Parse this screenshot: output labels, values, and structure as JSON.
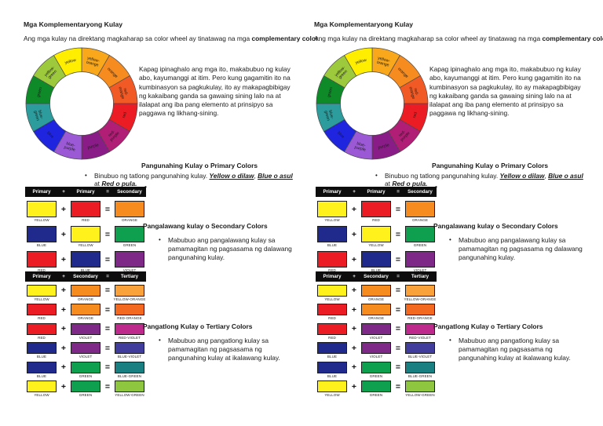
{
  "page": {
    "title": "Mga Komplementaryong Kulay",
    "intro": {
      "prefix": "Ang mga kulay na direktang magkaharap sa color wheel ay tinatawag na mga ",
      "bold": "complementary color",
      "suffix": "."
    },
    "wheel": {
      "segments": [
        {
          "label": "yellow-orange",
          "color": "#F9A81B"
        },
        {
          "label": "orange",
          "color": "#F68B1F"
        },
        {
          "label": "red-orange",
          "color": "#F15A25"
        },
        {
          "label": "red",
          "color": "#EC1C24"
        },
        {
          "label": "red-purple",
          "color": "#B01E76"
        },
        {
          "label": "purple",
          "color": "#8A1C87"
        },
        {
          "label": "blue-purple",
          "color": "#9C59D6"
        },
        {
          "label": "blue",
          "color": "#1F24DF"
        },
        {
          "label": "blue-green",
          "color": "#2D9C9C"
        },
        {
          "label": "green",
          "color": "#0F8A28"
        },
        {
          "label": "yellow-green",
          "color": "#9DC93D"
        },
        {
          "label": "yellow",
          "color": "#FFEE00"
        }
      ]
    },
    "mix_note": "Kapag ipinaghalo ang mga ito, makabubuo ng kulay abo, kayumanggi at itim. Pero kung gagamitin ito na kumbinasyon sa  pagkukulay, ito ay makapagbibigay ng kakaibang ganda sa gawaing sining lalo na at ilalapat ang iba pang elemento at prinsipyo sa paggawa ng likhang-sining.",
    "primary": {
      "heading": "Pangunahing Kulay o Primary Colors",
      "bullet_glyph": "•",
      "bullet_text": "Binubuo ng tatlong pangunahing kulay. ",
      "color1": "Yellow o dilaw",
      "sep1": ", ",
      "color2": "Blue o asul",
      "sep2": " at ",
      "color3": "Red o pula.",
      "stray_bullet": "•"
    },
    "secondary": {
      "heading": "Pangalawang kulay o Secondary Colors",
      "bullet_glyph": "•",
      "bullet": "Mabubuo ang pangalawang kulay sa pamamagitan ng pagsasama ng dalawang pangunahing kulay."
    },
    "tertiary": {
      "heading": "Pangatlong Kulay o Tertiary Colors",
      "bullet_glyph": "•",
      "bullet": "Mabubuo ang pangatlong kulay sa pamamagitan ng pagsasama ng pangunahing kulay at ikalawang kulay."
    },
    "primary_table": {
      "header": {
        "col1": "Primary",
        "op": "+",
        "col2": "Primary",
        "eq": "=",
        "col3": "Secondary"
      },
      "rows": [
        {
          "a": {
            "label": "YELLOW",
            "color": "#FFF11B"
          },
          "b": {
            "label": "RED",
            "color": "#EC1C24"
          },
          "result": {
            "label": "ORANGE",
            "color": "#F68B1F"
          }
        },
        {
          "a": {
            "label": "BLUE",
            "color": "#1F2A8C"
          },
          "b": {
            "label": "YELLOW",
            "color": "#FFF11B"
          },
          "result": {
            "label": "GREEN",
            "color": "#0FA04F"
          }
        },
        {
          "a": {
            "label": "RED",
            "color": "#EC1C24"
          },
          "b": {
            "label": "BLUE",
            "color": "#1F2A8C"
          },
          "result": {
            "label": "VIOLET",
            "color": "#7E2987"
          }
        }
      ]
    },
    "tertiary_table": {
      "header": {
        "col1": "Primary",
        "op": "+",
        "col2": "Secondary",
        "eq": "=",
        "col3": "Tertiary"
      },
      "rows": [
        {
          "a": {
            "label": "YELLOW",
            "color": "#FFF11B"
          },
          "b": {
            "label": "ORANGE",
            "color": "#F68B1F"
          },
          "result": {
            "label": "YELLOW-ORANGE",
            "color": "#F9A13A"
          }
        },
        {
          "a": {
            "label": "RED",
            "color": "#EC1C24"
          },
          "b": {
            "label": "ORANGE",
            "color": "#F68B1F"
          },
          "result": {
            "label": "RED-ORANGE",
            "color": "#F2691F"
          }
        },
        {
          "a": {
            "label": "RED",
            "color": "#EC1C24"
          },
          "b": {
            "label": "VIOLET",
            "color": "#7E2987"
          },
          "result": {
            "label": "RED-VIOLET",
            "color": "#BE2A8C"
          }
        },
        {
          "a": {
            "label": "BLUE",
            "color": "#1F2A8C"
          },
          "b": {
            "label": "VIOLET",
            "color": "#7E2987"
          },
          "result": {
            "label": "BLUE-VIOLET",
            "color": "#413D9C"
          }
        },
        {
          "a": {
            "label": "BLUE",
            "color": "#1F2A8C"
          },
          "b": {
            "label": "GREEN",
            "color": "#0FA04F"
          },
          "result": {
            "label": "BLUE-GREEN",
            "color": "#1A7F80"
          }
        },
        {
          "a": {
            "label": "YELLOW",
            "color": "#FFF11B"
          },
          "b": {
            "label": "GREEN",
            "color": "#0FA04F"
          },
          "result": {
            "label": "YELLOW-GREEN",
            "color": "#8EC63F"
          }
        }
      ]
    }
  }
}
